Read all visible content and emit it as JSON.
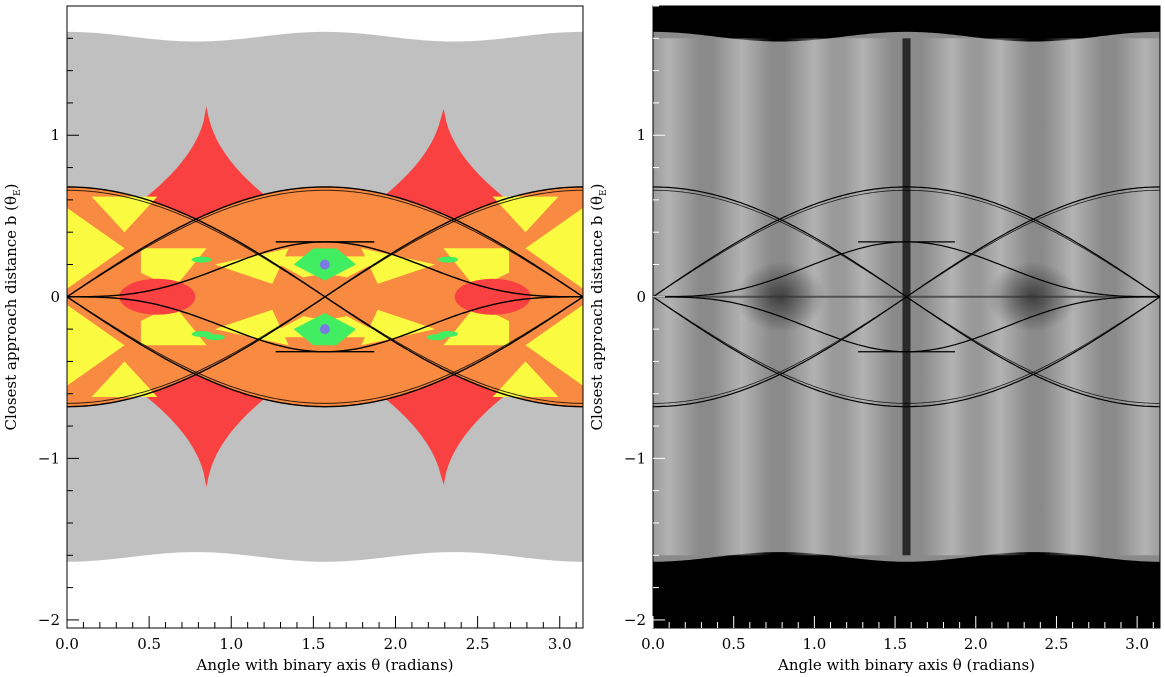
{
  "figure": {
    "colors": {
      "left_background": "#ffffff",
      "grey_region": "#c0c0c0",
      "red_region": "#fa4141",
      "orange_region": "#f88a41",
      "yellow_region": "#fafa41",
      "green_region": "#41ee61",
      "blue_region": "#7a7ae0",
      "right_background": "#000000",
      "caustic_line": "#000000"
    }
  },
  "chart_data": [
    {
      "type": "heatmap",
      "panel": "left",
      "description_of_color_map": "number of images (categorical colors)",
      "xlabel": "Angle with binary axis θ (radians)",
      "ylabel": "Closest approach distance b (θ",
      "ylabel_sub": "E",
      "ylabel_close": ")",
      "xlim": [
        0.0,
        3.14159
      ],
      "ylim": [
        -2.05,
        1.8
      ],
      "xticks": [
        0.0,
        0.5,
        1.0,
        1.5,
        2.0,
        2.5,
        3.0
      ],
      "xtick_labels": [
        "0.0",
        "0.5",
        "1.0",
        "1.5",
        "2.0",
        "2.5",
        "3.0"
      ],
      "yticks": [
        -2,
        -1,
        0,
        1
      ],
      "ytick_labels": [
        "−2",
        "−1",
        "0",
        "1"
      ],
      "grey_band_halfwidth_range": [
        1.58,
        1.64
      ],
      "red_cusp_peak_x": [
        0.85,
        2.29
      ],
      "red_cusp_peak_y": 1.22,
      "caustic_outer_amplitude": 0.68,
      "caustic_inner_amplitude": 0.34
    },
    {
      "type": "heatmap",
      "panel": "right",
      "description_of_color_map": "magnification (greyscale)",
      "xlabel": "Angle with binary axis θ (radians)",
      "ylabel": "Closest approach distance b (θ",
      "ylabel_sub": "E",
      "ylabel_close": ")",
      "xlim": [
        0.0,
        3.14159
      ],
      "ylim": [
        -2.05,
        1.8
      ],
      "xticks": [
        0.0,
        0.5,
        1.0,
        1.5,
        2.0,
        2.5,
        3.0
      ],
      "xtick_labels": [
        "0.0",
        "0.5",
        "1.0",
        "1.5",
        "2.0",
        "2.5",
        "3.0"
      ],
      "yticks": [
        -2,
        -1,
        0,
        1
      ],
      "ytick_labels": [
        "−2",
        "−1",
        "0",
        "1"
      ],
      "band_halfwidth_range": [
        1.58,
        1.64
      ],
      "caustic_outer_amplitude": 0.68,
      "caustic_inner_amplitude": 0.34
    }
  ]
}
